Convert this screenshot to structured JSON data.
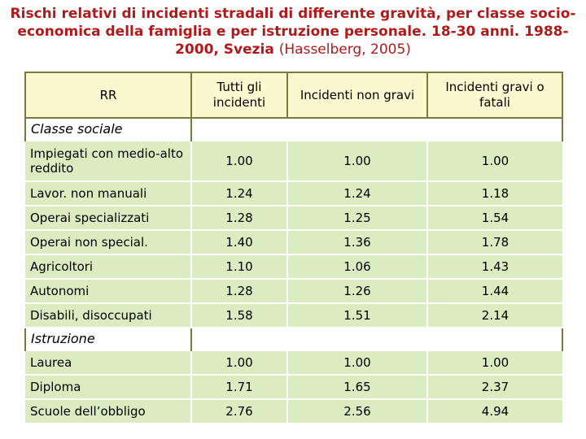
{
  "title": {
    "main": "Rischi relativi di incidenti stradali di differente gravità, per classe socio-economica della famiglia e per istruzione personale. 18-30 anni. 1988-2000, Svezia",
    "citation": "(Hasselberg, 2005)"
  },
  "table": {
    "corner_label": "RR",
    "columns": [
      "Tutti gli incidenti",
      "Incidenti non gravi",
      "Incidenti gravi o fatali"
    ],
    "sections": [
      {
        "label": "Classe sociale",
        "rows": [
          {
            "label": "Impiegati con medio-alto reddito",
            "values": [
              "1.00",
              "1.00",
              "1.00"
            ]
          },
          {
            "label": "Lavor. non manuali",
            "values": [
              "1.24",
              "1.24",
              "1.18"
            ]
          },
          {
            "label": "Operai specializzati",
            "values": [
              "1.28",
              "1.25",
              "1.54"
            ]
          },
          {
            "label": "Operai non special.",
            "values": [
              "1.40",
              "1.36",
              "1.78"
            ]
          },
          {
            "label": "Agricoltori",
            "values": [
              "1.10",
              "1.06",
              "1.43"
            ]
          },
          {
            "label": "Autonomi",
            "values": [
              "1.28",
              "1.26",
              "1.44"
            ]
          },
          {
            "label": "Disabili, disoccupati",
            "values": [
              "1.58",
              "1.51",
              "2.14"
            ]
          }
        ]
      },
      {
        "label": "Istruzione",
        "rows": [
          {
            "label": "Laurea",
            "values": [
              "1.00",
              "1.00",
              "1.00"
            ]
          },
          {
            "label": "Diploma",
            "values": [
              "1.71",
              "1.65",
              "2.37"
            ]
          },
          {
            "label": "Scuole dell’obbligo",
            "values": [
              "2.76",
              "2.56",
              "4.94"
            ]
          }
        ]
      }
    ]
  },
  "colors": {
    "title": "#b01a1a",
    "header_fill": "#fbf7cf",
    "row_fill": "#dbecc0",
    "border": "#7a7a3a"
  }
}
